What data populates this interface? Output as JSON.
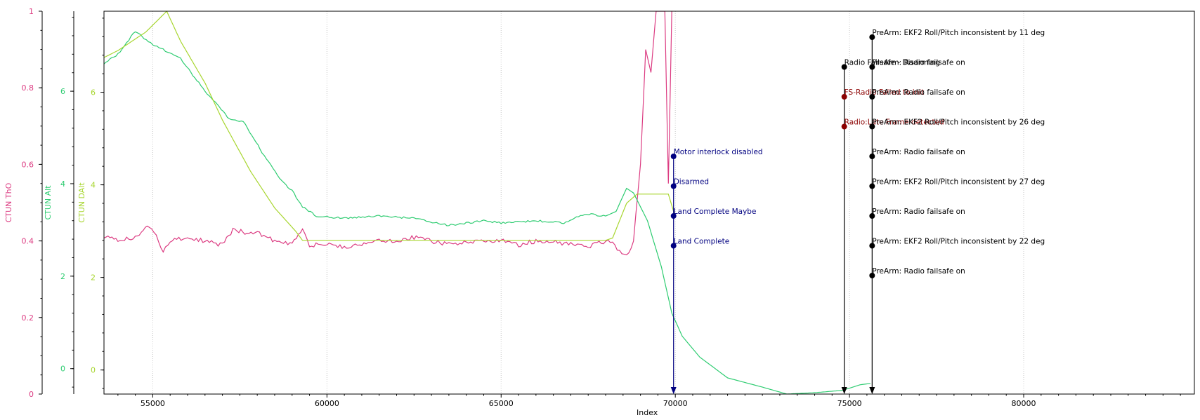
{
  "chart_data": {
    "type": "line",
    "xlabel": "Index",
    "xlim": [
      53600,
      84900
    ],
    "xticks": [
      55000,
      60000,
      65000,
      70000,
      75000,
      80000
    ],
    "axes": [
      {
        "key": "tho",
        "label": "CTUN ThO",
        "color": "#dc3c82",
        "ylim": [
          0,
          1
        ],
        "ticks": [
          0,
          0.2,
          0.4,
          0.6,
          0.8,
          1
        ],
        "tick_labels": [
          "0",
          "0.2",
          "0.4",
          "0.6",
          "0.8",
          "1"
        ]
      },
      {
        "key": "alt",
        "label": "CTUN Alt",
        "color": "#2ecc71",
        "ylim": [
          -0.55,
          7.73
        ],
        "ticks": [
          0,
          2,
          4,
          6
        ],
        "tick_labels": [
          "0",
          "2",
          "4",
          "6"
        ]
      },
      {
        "key": "dalt",
        "label": "CTUN DAlt",
        "color": "#a8d630",
        "ylim": [
          -0.52,
          7.75
        ],
        "ticks": [
          0,
          2,
          4,
          6
        ],
        "tick_labels": [
          "0",
          "2",
          "4",
          "6"
        ]
      }
    ],
    "series": [
      {
        "name": "CTUN ThO",
        "axis": "tho",
        "color": "#dc3c82",
        "points": [
          [
            53600,
            0.41
          ],
          [
            54000,
            0.4
          ],
          [
            54500,
            0.41
          ],
          [
            54900,
            0.44
          ],
          [
            55100,
            0.42
          ],
          [
            55300,
            0.37
          ],
          [
            55500,
            0.4
          ],
          [
            56000,
            0.41
          ],
          [
            56500,
            0.4
          ],
          [
            57000,
            0.39
          ],
          [
            57300,
            0.43
          ],
          [
            57700,
            0.42
          ],
          [
            58000,
            0.42
          ],
          [
            58500,
            0.4
          ],
          [
            59000,
            0.39
          ],
          [
            59300,
            0.43
          ],
          [
            59500,
            0.39
          ],
          [
            60000,
            0.39
          ],
          [
            60500,
            0.385
          ],
          [
            61000,
            0.39
          ],
          [
            61500,
            0.4
          ],
          [
            62000,
            0.4
          ],
          [
            62500,
            0.41
          ],
          [
            63000,
            0.4
          ],
          [
            63500,
            0.39
          ],
          [
            64000,
            0.4
          ],
          [
            64500,
            0.4
          ],
          [
            65000,
            0.4
          ],
          [
            65500,
            0.39
          ],
          [
            66000,
            0.4
          ],
          [
            66500,
            0.4
          ],
          [
            67000,
            0.39
          ],
          [
            67500,
            0.385
          ],
          [
            68000,
            0.4
          ],
          [
            68200,
            0.4
          ],
          [
            68400,
            0.37
          ],
          [
            68600,
            0.36
          ],
          [
            68800,
            0.4
          ],
          [
            69000,
            0.6
          ],
          [
            69150,
            0.9
          ],
          [
            69300,
            0.84
          ],
          [
            69450,
            1.0
          ],
          [
            69700,
            1.0
          ],
          [
            69800,
            0.55
          ],
          [
            69900,
            1.0
          ]
        ]
      },
      {
        "name": "CTUN Alt",
        "axis": "alt",
        "color": "#2ecc71",
        "points": [
          [
            53600,
            6.6
          ],
          [
            54000,
            6.8
          ],
          [
            54500,
            7.3
          ],
          [
            55000,
            7.0
          ],
          [
            55300,
            6.9
          ],
          [
            55800,
            6.7
          ],
          [
            56500,
            6.0
          ],
          [
            57200,
            5.4
          ],
          [
            57600,
            5.35
          ],
          [
            58200,
            4.6
          ],
          [
            58700,
            4.05
          ],
          [
            59000,
            3.85
          ],
          [
            59300,
            3.5
          ],
          [
            59700,
            3.3
          ],
          [
            60500,
            3.25
          ],
          [
            61500,
            3.3
          ],
          [
            62500,
            3.25
          ],
          [
            63500,
            3.1
          ],
          [
            64000,
            3.15
          ],
          [
            64500,
            3.2
          ],
          [
            65000,
            3.15
          ],
          [
            66000,
            3.2
          ],
          [
            66800,
            3.15
          ],
          [
            67400,
            3.35
          ],
          [
            68000,
            3.3
          ],
          [
            68300,
            3.4
          ],
          [
            68600,
            3.9
          ],
          [
            68800,
            3.8
          ],
          [
            69200,
            3.2
          ],
          [
            69600,
            2.2
          ],
          [
            69900,
            1.2
          ],
          [
            70200,
            0.7
          ],
          [
            70700,
            0.25
          ],
          [
            71500,
            -0.2
          ],
          [
            72500,
            -0.4
          ],
          [
            73200,
            -0.55
          ],
          [
            74000,
            -0.52
          ],
          [
            74800,
            -0.47
          ],
          [
            75300,
            -0.35
          ],
          [
            75600,
            -0.32
          ]
        ]
      },
      {
        "name": "CTUN DAlt",
        "axis": "dalt",
        "color": "#a8d630",
        "points": [
          [
            53600,
            6.75
          ],
          [
            54000,
            6.9
          ],
          [
            54800,
            7.3
          ],
          [
            55400,
            7.75
          ],
          [
            55800,
            7.1
          ],
          [
            56500,
            6.2
          ],
          [
            57000,
            5.4
          ],
          [
            57800,
            4.3
          ],
          [
            58500,
            3.5
          ],
          [
            59100,
            3.0
          ],
          [
            59300,
            2.8
          ],
          [
            60000,
            2.8
          ],
          [
            62000,
            2.8
          ],
          [
            64000,
            2.8
          ],
          [
            66000,
            2.8
          ],
          [
            68000,
            2.8
          ],
          [
            68200,
            2.85
          ],
          [
            68600,
            3.6
          ],
          [
            68900,
            3.8
          ],
          [
            69800,
            3.8
          ],
          [
            70000,
            3.3
          ]
        ]
      }
    ],
    "events": [
      {
        "x": 69950,
        "color": "#000080",
        "items": [
          {
            "text": "Motor interlock disabled",
            "color": "#000080"
          },
          {
            "text": "Disarmed",
            "color": "#000080"
          },
          {
            "text": "Land Complete Maybe",
            "color": "#000080"
          },
          {
            "text": "Land Complete",
            "color": "#000080"
          }
        ]
      },
      {
        "x": 74850,
        "color": "#000000",
        "items": [
          {
            "text": "Radio Failsafe - Disarming",
            "color": "#000000"
          },
          {
            "text": "FS-Radio:Failed to init",
            "color": "#8b0000"
          },
          {
            "text": "Radio:Late Frame detected",
            "color": "#8b0000"
          }
        ]
      },
      {
        "x": 75650,
        "color": "#000000",
        "items": [
          {
            "text": "PreArm: EKF2 Roll/Pitch inconsistent by 11 deg",
            "color": "#000000"
          },
          {
            "text": "PreArm: Radio failsafe on",
            "color": "#000000"
          },
          {
            "text": "PreArm: Radio failsafe on",
            "color": "#000000"
          },
          {
            "text": "PreArm: EKF2 Roll/Pitch inconsistent by 26 deg",
            "color": "#000000"
          },
          {
            "text": "PreArm: Radio failsafe on",
            "color": "#000000"
          },
          {
            "text": "PreArm: EKF2 Roll/Pitch inconsistent by 27 deg",
            "color": "#000000"
          },
          {
            "text": "PreArm: Radio failsafe on",
            "color": "#000000"
          },
          {
            "text": "PreArm: EKF2 Roll/Pitch inconsistent by 22 deg",
            "color": "#000000"
          },
          {
            "text": "PreArm: Radio failsafe on",
            "color": "#000000"
          }
        ]
      }
    ],
    "grid": {
      "x": true,
      "y": false
    }
  }
}
